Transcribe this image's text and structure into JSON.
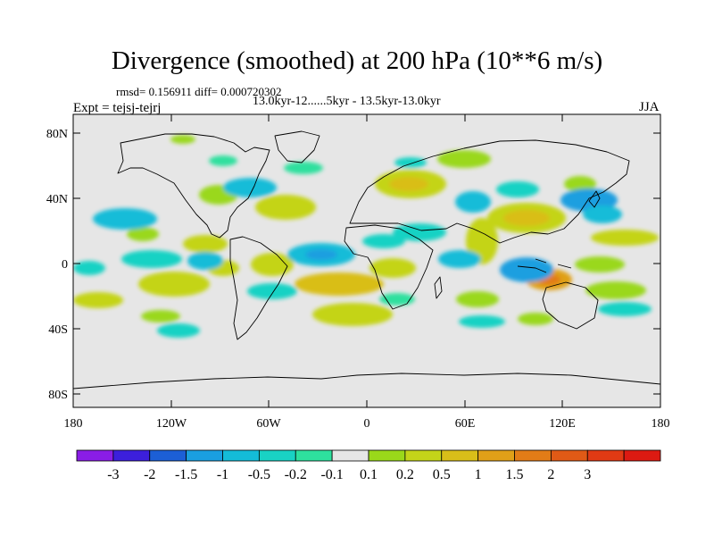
{
  "title": "Divergence (smoothed) at 200 hPa (10**6 m/s)",
  "stats": {
    "rmsd_label": "rmsd= 0.156911",
    "diff_label": "diff= 0.000720302"
  },
  "period": "13.0kyr-12......5kyr - 13.5kyr-13.0kyr",
  "experiment": "Expt = tejsj-tejrj",
  "season": "JJA",
  "map": {
    "background_color": "#e6e6e6",
    "y_ticks": [
      "80N",
      "40N",
      "0",
      "40S",
      "80S"
    ],
    "x_ticks": [
      "180",
      "120W",
      "60W",
      "0",
      "60E",
      "120E",
      "180"
    ]
  },
  "colorbar": {
    "colors": [
      "#8a1de6",
      "#3c1fdc",
      "#1c5fd6",
      "#1a9fe0",
      "#14bcd8",
      "#19d2c4",
      "#2ee09e",
      "#e6e6e6",
      "#9ad81a",
      "#c4d419",
      "#d9be19",
      "#e0a018",
      "#e27c17",
      "#e05a16",
      "#e03a14",
      "#dc1a12"
    ],
    "labels": [
      "-3",
      "-2",
      "-1.5",
      "-1",
      "-0.5",
      "-0.2",
      "-0.1",
      "0.1",
      "0.2",
      "0.5",
      "1",
      "1.5",
      "2",
      "3"
    ]
  }
}
